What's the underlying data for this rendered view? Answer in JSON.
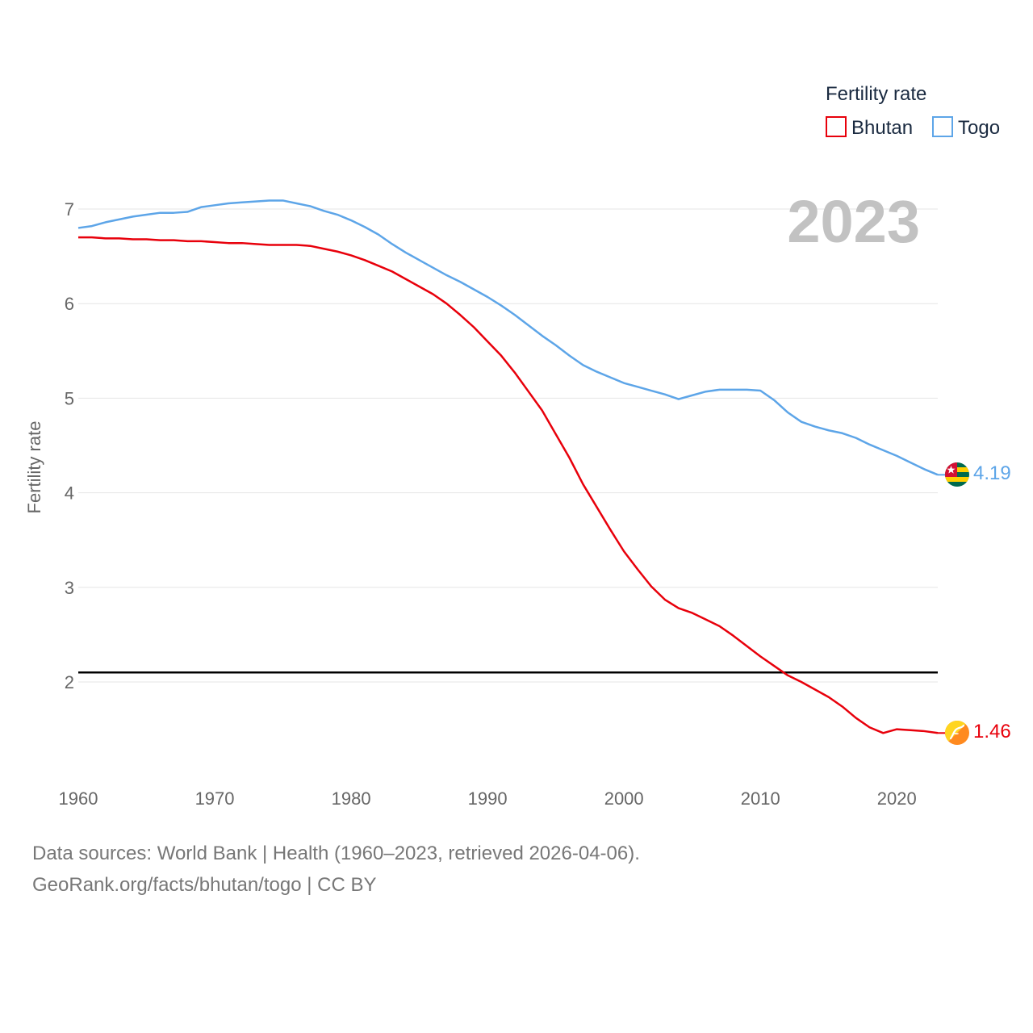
{
  "chart_data": {
    "type": "line",
    "title": "",
    "xlabel": "",
    "ylabel": "Fertility rate",
    "legend_title": "Fertility rate",
    "legend_position": "top-right",
    "year_watermark": "2023",
    "xlim": [
      1960,
      2023
    ],
    "ylim": [
      1.0,
      7.5
    ],
    "x_ticks": [
      1960,
      1970,
      1980,
      1990,
      2000,
      2010,
      2020
    ],
    "y_ticks": [
      2,
      3,
      4,
      5,
      6,
      7
    ],
    "grid": true,
    "reference_line": {
      "value": 2.1,
      "color": "#000000"
    },
    "x": [
      1960,
      1961,
      1962,
      1963,
      1964,
      1965,
      1966,
      1967,
      1968,
      1969,
      1970,
      1971,
      1972,
      1973,
      1974,
      1975,
      1976,
      1977,
      1978,
      1979,
      1980,
      1981,
      1982,
      1983,
      1984,
      1985,
      1986,
      1987,
      1988,
      1989,
      1990,
      1991,
      1992,
      1993,
      1994,
      1995,
      1996,
      1997,
      1998,
      1999,
      2000,
      2001,
      2002,
      2003,
      2004,
      2005,
      2006,
      2007,
      2008,
      2009,
      2010,
      2011,
      2012,
      2013,
      2014,
      2015,
      2016,
      2017,
      2018,
      2019,
      2020,
      2021,
      2022,
      2023
    ],
    "series": [
      {
        "name": "Bhutan",
        "color": "#e8000b",
        "end_label": "1.46",
        "flag_icon": "bhutan-flag-icon",
        "values": [
          6.7,
          6.7,
          6.69,
          6.69,
          6.68,
          6.68,
          6.67,
          6.67,
          6.66,
          6.66,
          6.65,
          6.64,
          6.64,
          6.63,
          6.62,
          6.62,
          6.62,
          6.61,
          6.58,
          6.55,
          6.51,
          6.46,
          6.4,
          6.34,
          6.26,
          6.18,
          6.1,
          6.0,
          5.88,
          5.75,
          5.6,
          5.45,
          5.27,
          5.07,
          4.87,
          4.62,
          4.37,
          4.09,
          3.85,
          3.61,
          3.38,
          3.19,
          3.01,
          2.87,
          2.78,
          2.73,
          2.66,
          2.59,
          2.49,
          2.38,
          2.27,
          2.17,
          2.07,
          2.0,
          1.92,
          1.84,
          1.74,
          1.62,
          1.52,
          1.46,
          1.5,
          1.49,
          1.48,
          1.46
        ]
      },
      {
        "name": "Togo",
        "color": "#5da5e8",
        "end_label": "4.19",
        "flag_icon": "togo-flag-icon",
        "values": [
          6.8,
          6.82,
          6.86,
          6.89,
          6.92,
          6.94,
          6.96,
          6.96,
          6.97,
          7.02,
          7.04,
          7.06,
          7.07,
          7.08,
          7.09,
          7.09,
          7.06,
          7.03,
          6.98,
          6.94,
          6.88,
          6.81,
          6.73,
          6.63,
          6.54,
          6.46,
          6.38,
          6.3,
          6.23,
          6.15,
          6.07,
          5.98,
          5.88,
          5.77,
          5.66,
          5.56,
          5.45,
          5.35,
          5.28,
          5.22,
          5.16,
          5.12,
          5.08,
          5.04,
          4.99,
          5.03,
          5.07,
          5.09,
          5.09,
          5.09,
          5.08,
          4.98,
          4.85,
          4.75,
          4.7,
          4.66,
          4.63,
          4.58,
          4.51,
          4.45,
          4.39,
          4.32,
          4.25,
          4.19
        ]
      }
    ]
  },
  "footer": {
    "line1": "Data sources: World Bank | Health (1960–2023, retrieved 2026-04-06).",
    "line2": "GeoRank.org/facts/bhutan/togo | CC BY"
  }
}
